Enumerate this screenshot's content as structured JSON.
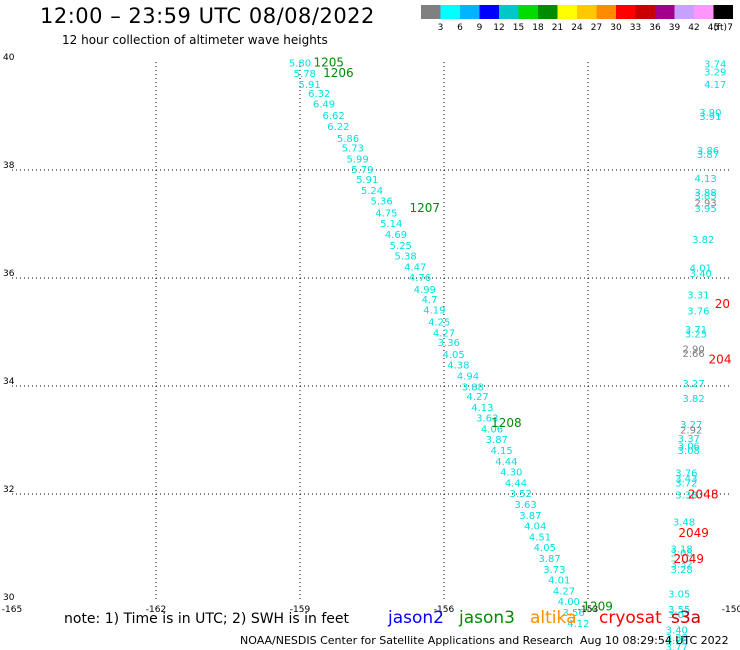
{
  "header": {
    "title": "12:00 – 23:59 UTC 08/08/2022",
    "subtitle": "12 hour collection of altimeter wave heights"
  },
  "legend": {
    "unit": "(ft)",
    "ticks": [
      "3",
      "6",
      "9",
      "12",
      "15",
      "18",
      "21",
      "24",
      "27",
      "30",
      "33",
      "36",
      "39",
      "42",
      "45",
      "70"
    ],
    "colors": [
      "#808080",
      "#00ffff",
      "#00b4ff",
      "#0000ff",
      "#00c8c8",
      "#00dc00",
      "#008c00",
      "#ffff00",
      "#ffc800",
      "#ff8c00",
      "#ff0000",
      "#c80000",
      "#a0008c",
      "#c8a0ff",
      "#ff96ff",
      "#000000"
    ]
  },
  "axes": {
    "x_labels": [
      "-165",
      "-162",
      "-159",
      "-156",
      "-153",
      "-150"
    ],
    "y_labels": [
      "40",
      "38",
      "36",
      "34",
      "32",
      "30"
    ],
    "lon_range": [
      -165,
      -150
    ],
    "lat_range": [
      30,
      40
    ]
  },
  "footer": {
    "note": "note:  1) Time is in UTC;  2) SWH is in feet",
    "credit": "NOAA/NESDIS Center for Satellite Applications and Research",
    "timestamp": "Aug 10 08:29:54 UTC 2022",
    "satellites": [
      {
        "name": "jason2",
        "color": "#0000ff"
      },
      {
        "name": "jason3",
        "color": "#008c00"
      },
      {
        "name": "altika",
        "color": "#ff8c00"
      },
      {
        "name": "cryosat",
        "color": "#ff0000"
      },
      {
        "name": "s3a",
        "color": "#c80000"
      }
    ]
  },
  "observations": {
    "main_track": [
      {
        "lon": -159.0,
        "lat": 39.92,
        "v": "5.80"
      },
      {
        "lon": -158.9,
        "lat": 39.72,
        "v": "5.78"
      },
      {
        "lon": -158.8,
        "lat": 39.52,
        "v": "5.91"
      },
      {
        "lon": -158.6,
        "lat": 39.35,
        "v": "6.32"
      },
      {
        "lon": -158.5,
        "lat": 39.16,
        "v": "6.49"
      },
      {
        "lon": -158.3,
        "lat": 38.94,
        "v": "6.62"
      },
      {
        "lon": -158.2,
        "lat": 38.74,
        "v": "6.22"
      },
      {
        "lon": -158.0,
        "lat": 38.52,
        "v": "5.86"
      },
      {
        "lon": -157.9,
        "lat": 38.34,
        "v": "5.73"
      },
      {
        "lon": -157.8,
        "lat": 38.14,
        "v": "5.99"
      },
      {
        "lon": -157.7,
        "lat": 37.94,
        "v": "5.79"
      },
      {
        "lon": -157.6,
        "lat": 37.76,
        "v": "5.91"
      },
      {
        "lon": -157.5,
        "lat": 37.56,
        "v": "5.24"
      },
      {
        "lon": -157.3,
        "lat": 37.36,
        "v": "5.36"
      },
      {
        "lon": -157.2,
        "lat": 37.14,
        "v": "4.75"
      },
      {
        "lon": -157.1,
        "lat": 36.94,
        "v": "5.14"
      },
      {
        "lon": -157.0,
        "lat": 36.74,
        "v": "4.69"
      },
      {
        "lon": -156.9,
        "lat": 36.54,
        "v": "5.25"
      },
      {
        "lon": -156.8,
        "lat": 36.34,
        "v": "5.38"
      },
      {
        "lon": -156.6,
        "lat": 36.14,
        "v": "4.47"
      },
      {
        "lon": -156.5,
        "lat": 35.94,
        "v": "4.76"
      },
      {
        "lon": -156.4,
        "lat": 35.72,
        "v": "4.99"
      },
      {
        "lon": -156.3,
        "lat": 35.54,
        "v": "4.7"
      },
      {
        "lon": -156.2,
        "lat": 35.34,
        "v": "4.19"
      },
      {
        "lon": -156.1,
        "lat": 35.12,
        "v": "4.25"
      },
      {
        "lon": -156.0,
        "lat": 34.92,
        "v": "4.27"
      },
      {
        "lon": -155.9,
        "lat": 34.74,
        "v": "3.36"
      },
      {
        "lon": -155.8,
        "lat": 34.52,
        "v": "4.05"
      },
      {
        "lon": -155.7,
        "lat": 34.32,
        "v": "4.38"
      },
      {
        "lon": -155.5,
        "lat": 34.12,
        "v": "4.94"
      },
      {
        "lon": -155.4,
        "lat": 33.92,
        "v": "3.88"
      },
      {
        "lon": -155.3,
        "lat": 33.74,
        "v": "4.27"
      },
      {
        "lon": -155.2,
        "lat": 33.54,
        "v": "4.13"
      },
      {
        "lon": -155.1,
        "lat": 33.34,
        "v": "3.63"
      },
      {
        "lon": -155.0,
        "lat": 33.14,
        "v": "4.06"
      },
      {
        "lon": -154.9,
        "lat": 32.94,
        "v": "3.87"
      },
      {
        "lon": -154.8,
        "lat": 32.74,
        "v": "4.15"
      },
      {
        "lon": -154.7,
        "lat": 32.54,
        "v": "4.44"
      },
      {
        "lon": -154.6,
        "lat": 32.34,
        "v": "4.30"
      },
      {
        "lon": -154.5,
        "lat": 32.14,
        "v": "4.44"
      },
      {
        "lon": -154.4,
        "lat": 31.94,
        "v": "3.52"
      },
      {
        "lon": -154.3,
        "lat": 31.74,
        "v": "3.63"
      },
      {
        "lon": -154.2,
        "lat": 31.54,
        "v": "3.87"
      },
      {
        "lon": -154.1,
        "lat": 31.34,
        "v": "4.04"
      },
      {
        "lon": -154.0,
        "lat": 31.14,
        "v": "4.51"
      },
      {
        "lon": -153.9,
        "lat": 30.94,
        "v": "4.05"
      },
      {
        "lon": -153.8,
        "lat": 30.74,
        "v": "3.87"
      },
      {
        "lon": -153.7,
        "lat": 30.54,
        "v": "3.73"
      },
      {
        "lon": -153.6,
        "lat": 30.34,
        "v": "4.01"
      },
      {
        "lon": -153.5,
        "lat": 30.14,
        "v": "4.27"
      },
      {
        "lon": -153.4,
        "lat": 29.94,
        "v": "4.00"
      },
      {
        "lon": -153.3,
        "lat": 29.74,
        "v": "3.56"
      },
      {
        "lon": -153.2,
        "lat": 29.54,
        "v": "4.12"
      }
    ],
    "east_track": [
      {
        "lon": -150.35,
        "lat": 39.9,
        "v": "3.74",
        "c": "#00ffff"
      },
      {
        "lon": -150.35,
        "lat": 39.75,
        "v": "3.29",
        "c": "#00ffff"
      },
      {
        "lon": -150.35,
        "lat": 39.52,
        "v": "4.17",
        "c": "#00ffff"
      },
      {
        "lon": -150.45,
        "lat": 39.0,
        "v": "3.90",
        "c": "#00ffff"
      },
      {
        "lon": -150.45,
        "lat": 38.93,
        "v": "3.91",
        "c": "#00ffff"
      },
      {
        "lon": -150.5,
        "lat": 38.3,
        "v": "3.86",
        "c": "#00ffff"
      },
      {
        "lon": -150.5,
        "lat": 38.22,
        "v": "3.87",
        "c": "#00ffff"
      },
      {
        "lon": -150.55,
        "lat": 37.78,
        "v": "4.13",
        "c": "#00ffff"
      },
      {
        "lon": -150.55,
        "lat": 37.52,
        "v": "3.88",
        "c": "#00ffff"
      },
      {
        "lon": -150.55,
        "lat": 37.45,
        "v": "3.85",
        "c": "#00ffff"
      },
      {
        "lon": -150.55,
        "lat": 37.32,
        "v": "2.93",
        "c": "#808080"
      },
      {
        "lon": -150.55,
        "lat": 37.22,
        "v": "3.95",
        "c": "#00ffff"
      },
      {
        "lon": -150.6,
        "lat": 36.65,
        "v": "3.82",
        "c": "#00ffff"
      },
      {
        "lon": -150.65,
        "lat": 36.12,
        "v": "4.01",
        "c": "#00ffff"
      },
      {
        "lon": -150.65,
        "lat": 36.02,
        "v": "3.40",
        "c": "#00ffff"
      },
      {
        "lon": -150.7,
        "lat": 35.62,
        "v": "3.31",
        "c": "#00ffff"
      },
      {
        "lon": -150.7,
        "lat": 35.32,
        "v": "3.76",
        "c": "#00ffff"
      },
      {
        "lon": -150.75,
        "lat": 34.98,
        "v": "3.71",
        "c": "#00ffff"
      },
      {
        "lon": -150.75,
        "lat": 34.9,
        "v": "3.25",
        "c": "#00ffff"
      },
      {
        "lon": -150.8,
        "lat": 34.62,
        "v": "2.90",
        "c": "#808080"
      },
      {
        "lon": -150.8,
        "lat": 34.54,
        "v": "2.66",
        "c": "#808080"
      },
      {
        "lon": -150.8,
        "lat": 33.98,
        "v": "3.27",
        "c": "#00ffff"
      },
      {
        "lon": -150.8,
        "lat": 33.7,
        "v": "3.82",
        "c": "#00ffff"
      },
      {
        "lon": -150.85,
        "lat": 33.22,
        "v": "3.27",
        "c": "#00ffff"
      },
      {
        "lon": -150.85,
        "lat": 33.12,
        "v": "2.92",
        "c": "#808080"
      },
      {
        "lon": -150.9,
        "lat": 32.96,
        "v": "3.37",
        "c": "#00ffff"
      },
      {
        "lon": -150.9,
        "lat": 32.82,
        "v": "3.06",
        "c": "#00ffff"
      },
      {
        "lon": -150.9,
        "lat": 32.74,
        "v": "3.08",
        "c": "#00ffff"
      },
      {
        "lon": -150.95,
        "lat": 32.32,
        "v": "3.76",
        "c": "#00ffff"
      },
      {
        "lon": -150.95,
        "lat": 32.22,
        "v": "3.43",
        "c": "#00ffff"
      },
      {
        "lon": -150.95,
        "lat": 32.14,
        "v": "3.72",
        "c": "#00ffff"
      },
      {
        "lon": -150.95,
        "lat": 31.92,
        "v": "3.38",
        "c": "#00ffff"
      },
      {
        "lon": -151.0,
        "lat": 31.42,
        "v": "3.48",
        "c": "#00ffff"
      },
      {
        "lon": -151.05,
        "lat": 30.92,
        "v": "3.18",
        "c": "#00ffff"
      },
      {
        "lon": -151.05,
        "lat": 30.84,
        "v": "3.08",
        "c": "#00ffff"
      },
      {
        "lon": -151.05,
        "lat": 30.64,
        "v": "3.32",
        "c": "#00ffff"
      },
      {
        "lon": -151.05,
        "lat": 30.54,
        "v": "3.28",
        "c": "#00ffff"
      },
      {
        "lon": -151.1,
        "lat": 30.08,
        "v": "3.05",
        "c": "#00ffff"
      },
      {
        "lon": -151.1,
        "lat": 29.8,
        "v": "3.55",
        "c": "#00ffff"
      },
      {
        "lon": -151.1,
        "lat": 29.7,
        "v": "3.02",
        "c": "#00ffff"
      },
      {
        "lon": -151.15,
        "lat": 29.42,
        "v": "3.40",
        "c": "#00ffff"
      },
      {
        "lon": -151.15,
        "lat": 29.28,
        "v": "3.38",
        "c": "#00ffff"
      },
      {
        "lon": -151.15,
        "lat": 29.22,
        "v": "3.26",
        "c": "#00ffff"
      },
      {
        "lon": -151.15,
        "lat": 29.1,
        "v": "3.77",
        "c": "#00ffff"
      }
    ],
    "time_labels": [
      {
        "lon": -158.4,
        "lat": 39.92,
        "t": "1205",
        "c": "#008c00"
      },
      {
        "lon": -158.2,
        "lat": 39.72,
        "t": "1206",
        "c": "#008c00"
      },
      {
        "lon": -156.4,
        "lat": 37.22,
        "t": "1207",
        "c": "#008c00"
      },
      {
        "lon": -154.7,
        "lat": 33.24,
        "t": "1208",
        "c": "#008c00"
      },
      {
        "lon": -152.8,
        "lat": 29.84,
        "t": "1209",
        "c": "#008c00"
      },
      {
        "lon": -150.2,
        "lat": 35.44,
        "t": "20",
        "c": "#ff0000"
      },
      {
        "lon": -150.25,
        "lat": 34.42,
        "t": "204",
        "c": "#ff0000"
      },
      {
        "lon": -150.6,
        "lat": 31.92,
        "t": "2048",
        "c": "#ff0000"
      },
      {
        "lon": -150.8,
        "lat": 31.2,
        "t": "2049",
        "c": "#ff0000"
      },
      {
        "lon": -150.9,
        "lat": 30.72,
        "t": "2049",
        "c": "#ff0000"
      }
    ]
  }
}
